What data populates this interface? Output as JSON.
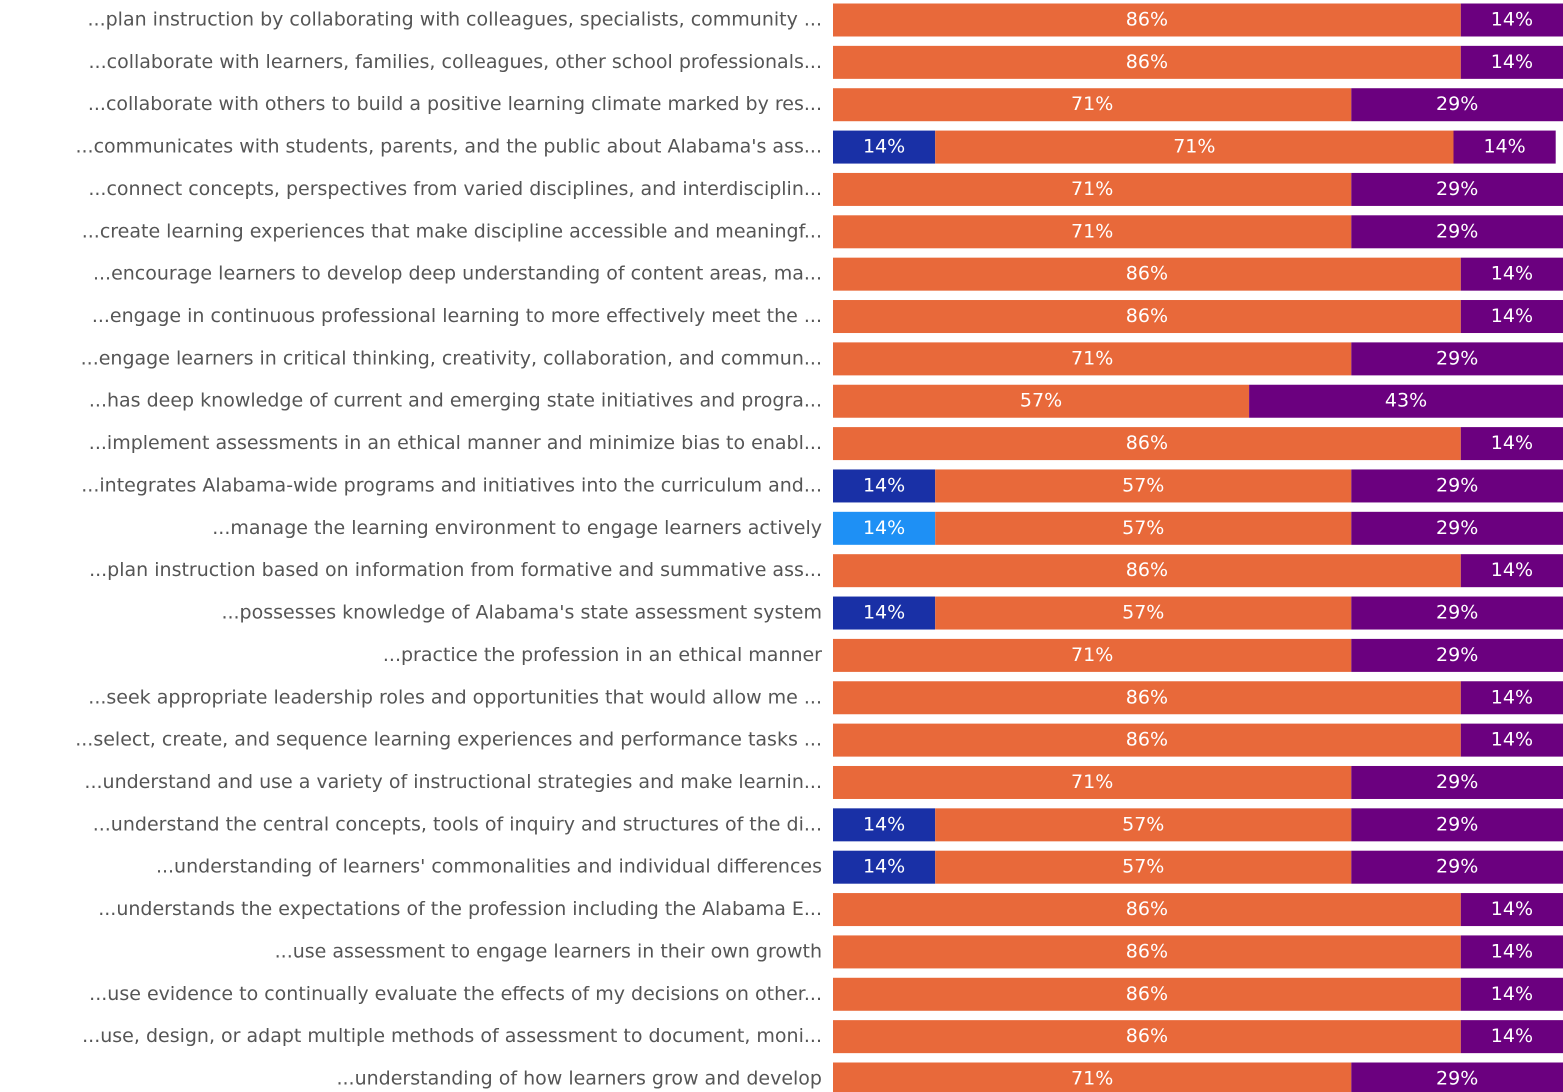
{
  "chart_data": {
    "type": "stacked_bar_horizontal",
    "categories": [
      "...plan instruction by collaborating with colleagues, specialists, community ...",
      "...collaborate with learners, families, colleagues, other school professionals...",
      "...collaborate with others to build a positive learning climate marked by res...",
      "...communicates with students, parents, and the public about Alabama's ass...",
      "...connect concepts, perspectives from varied disciplines, and interdisciplin...",
      "...create learning experiences that make discipline accessible and meaningf...",
      "...encourage learners to develop deep understanding of content areas, ma...",
      "...engage in continuous professional learning to more effectively meet the ...",
      "...engage learners in critical thinking, creativity, collaboration, and commun...",
      "...has deep knowledge of current and emerging state initiatives and progra...",
      "...implement assessments in an ethical manner and minimize bias to enabl...",
      "...integrates Alabama-wide programs and initiatives into the curriculum and...",
      "...manage the learning environment to engage learners actively",
      "...plan instruction based on information from formative and summative ass...",
      "...possesses knowledge of Alabama's state assessment system",
      "...practice the profession in an ethical manner",
      "...seek appropriate leadership roles and opportunities that would allow me ...",
      "...select, create, and sequence learning experiences and performance tasks ...",
      "...understand and use a variety of instructional strategies and make learnin...",
      "...understand the central concepts, tools of inquiry and structures of the di...",
      "...understanding of learners' commonalities and individual differences",
      "...understands the expectations of the profession including the Alabama E...",
      "...use assessment to engage learners in their own growth",
      "...use evidence to continually evaluate the effects of my decisions on other...",
      "...use, design, or adapt multiple methods of assessment to document, moni...",
      "...understanding of how learners grow and develop"
    ],
    "series": [
      {
        "color": "#1930a6",
        "values": [
          null,
          null,
          null,
          14,
          null,
          null,
          null,
          null,
          null,
          null,
          null,
          14,
          null,
          null,
          14,
          null,
          null,
          null,
          null,
          14,
          14,
          null,
          null,
          null,
          null,
          null
        ],
        "value_labels": [
          null,
          null,
          null,
          "14%",
          null,
          null,
          null,
          null,
          null,
          null,
          null,
          "14%",
          null,
          null,
          "14%",
          null,
          null,
          null,
          null,
          "14%",
          "14%",
          null,
          null,
          null,
          null,
          null
        ]
      },
      {
        "color": "#1e90f5",
        "values": [
          null,
          null,
          null,
          null,
          null,
          null,
          null,
          null,
          null,
          null,
          null,
          null,
          14,
          null,
          null,
          null,
          null,
          null,
          null,
          null,
          null,
          null,
          null,
          null,
          null,
          null
        ],
        "value_labels": [
          null,
          null,
          null,
          null,
          null,
          null,
          null,
          null,
          null,
          null,
          null,
          null,
          "14%",
          null,
          null,
          null,
          null,
          null,
          null,
          null,
          null,
          null,
          null,
          null,
          null,
          null
        ]
      },
      {
        "color": "#e8693a",
        "values": [
          86,
          86,
          71,
          71,
          71,
          71,
          86,
          86,
          71,
          57,
          86,
          57,
          57,
          86,
          57,
          71,
          86,
          86,
          71,
          57,
          57,
          86,
          86,
          86,
          86,
          71
        ],
        "value_labels": [
          "86%",
          "86%",
          "71%",
          "71%",
          "71%",
          "71%",
          "86%",
          "86%",
          "71%",
          "57%",
          "86%",
          "57%",
          "57%",
          "86%",
          "57%",
          "71%",
          "86%",
          "86%",
          "71%",
          "57%",
          "57%",
          "86%",
          "86%",
          "86%",
          "86%",
          "71%"
        ]
      },
      {
        "color": "#6b007f",
        "values": [
          14,
          14,
          29,
          14,
          29,
          29,
          14,
          14,
          29,
          43,
          14,
          29,
          29,
          14,
          29,
          29,
          14,
          14,
          29,
          29,
          29,
          14,
          14,
          14,
          14,
          29
        ],
        "value_labels": [
          "14%",
          "14%",
          "29%",
          "14%",
          "29%",
          "29%",
          "14%",
          "14%",
          "29%",
          "43%",
          "14%",
          "29%",
          "29%",
          "14%",
          "29%",
          "29%",
          "14%",
          "14%",
          "29%",
          "29%",
          "29%",
          "14%",
          "14%",
          "14%",
          "14%",
          "29%"
        ]
      }
    ],
    "xlim": [
      0,
      100
    ]
  }
}
